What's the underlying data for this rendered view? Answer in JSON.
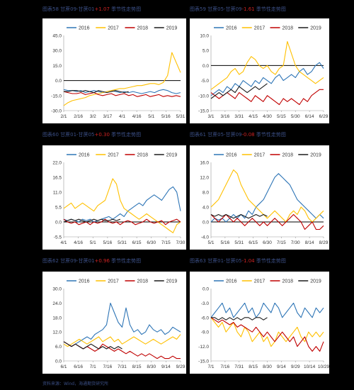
{
  "page": {
    "footer": "资料来源：Wind，海通期货研究所"
  },
  "chart_data": [
    {
      "type": "line",
      "caption": {
        "prefix": "图表58 甘蔗09-甘蔗01",
        "highlight": "+1.07",
        "suffix": " 季节性走势图"
      },
      "x_ticks": [
        "2/1",
        "2/16",
        "3/2",
        "3/17",
        "4/1",
        "4/16",
        "5/1",
        "5/16",
        "5/31"
      ],
      "ylim": [
        -30,
        45
      ],
      "y_ticks": [
        "45.0",
        "30.0",
        "15.0",
        "0.0",
        "-15.0",
        "-30.0"
      ],
      "y_tick_values": [
        45,
        30,
        15,
        0,
        -15,
        -30
      ],
      "legend": [
        "2016",
        "2017",
        "2018",
        "2019"
      ],
      "legend_position": "top",
      "series": [
        {
          "name": "2016",
          "color": "#2e75b6",
          "values": [
            -9,
            -10,
            -10,
            -11,
            -10,
            -12,
            -11,
            -10,
            -11,
            -12,
            -11,
            -10,
            -11,
            -12,
            -11,
            -12,
            -11,
            -12,
            -13,
            -12,
            -11,
            -12,
            -10,
            -9,
            -10,
            -12,
            -13,
            -12
          ]
        },
        {
          "name": "2017",
          "color": "#ffc000",
          "values": [
            -25,
            -22,
            -20,
            -19,
            -18,
            -17,
            -15,
            -14,
            -13,
            -12,
            -11,
            -10,
            -9,
            -8,
            -8,
            -7,
            -6,
            -5,
            -5,
            -4,
            -3,
            -3,
            -4,
            -2,
            5,
            28,
            18,
            8
          ]
        },
        {
          "name": "2018",
          "color": "#c00000",
          "values": [
            -11,
            -12,
            -13,
            -13,
            -12,
            -14,
            -13,
            -12,
            -14,
            -15,
            -14,
            -13,
            -15,
            -14,
            -13,
            -15,
            -14,
            -16,
            -15,
            -14,
            -16,
            -15,
            -14,
            -16,
            -15,
            -16,
            -15,
            -16
          ]
        },
        {
          "name": "2019",
          "color": "#1a1a1a",
          "values": [
            -11,
            -11,
            -10,
            -10,
            -11,
            -10,
            -11,
            -12,
            -10,
            -11,
            -12,
            -11,
            -10,
            -11,
            -12,
            -11
          ]
        }
      ]
    },
    {
      "type": "line",
      "caption": {
        "prefix": "图表59 甘蔗05-甘蔗09",
        "highlight": "-1.61",
        "suffix": " 季节性走势图"
      },
      "x_ticks": [
        "3/1",
        "3/16",
        "3/31",
        "4/15",
        "4/30",
        "5/15",
        "5/30",
        "6/14",
        "6/29"
      ],
      "ylim": [
        -15,
        10
      ],
      "y_ticks": [
        "10.0",
        "5.0",
        "0.0",
        "-5.0",
        "-10.0",
        "-15.0"
      ],
      "y_tick_values": [
        10,
        5,
        0,
        -5,
        -10,
        -15
      ],
      "legend": [
        "2016",
        "2017",
        "2018",
        "2019"
      ],
      "legend_position": "top",
      "series": [
        {
          "name": "2016",
          "color": "#2e75b6",
          "values": [
            -10,
            -9,
            -8,
            -9,
            -7,
            -8,
            -6,
            -7,
            -5,
            -6,
            -7,
            -5,
            -6,
            -4,
            -5,
            -6,
            -4,
            -3,
            -5,
            -4,
            -3,
            -4,
            -2,
            -1,
            -3,
            -2,
            0,
            1,
            -1
          ]
        },
        {
          "name": "2017",
          "color": "#ffc000",
          "values": [
            -8,
            -7,
            -6,
            -5,
            -4,
            -2,
            -1,
            -3,
            -2,
            1,
            3,
            2,
            0,
            -1,
            0,
            -2,
            -3,
            -1,
            0,
            8,
            4,
            0,
            -2,
            -3,
            -4,
            -5,
            -6,
            -5,
            -4
          ]
        },
        {
          "name": "2018",
          "color": "#c00000",
          "values": [
            -9,
            -10,
            -11,
            -10,
            -9,
            -10,
            -11,
            -9,
            -10,
            -11,
            -12,
            -10,
            -11,
            -12,
            -10,
            -11,
            -12,
            -13,
            -11,
            -12,
            -11,
            -12,
            -13,
            -11,
            -12,
            -10,
            -9,
            -8,
            -8
          ]
        },
        {
          "name": "2019",
          "color": "#1a1a1a",
          "values": [
            -11,
            -10,
            -9,
            -10,
            -9,
            -8,
            -9,
            -7,
            -8,
            -9,
            -8,
            -7,
            -8,
            -7,
            -6
          ]
        }
      ]
    },
    {
      "type": "line",
      "caption": {
        "prefix": "图表60 甘蔗01-甘蔗05",
        "highlight": "+0.30",
        "suffix": " 季节性走势图"
      },
      "x_ticks": [
        "4/1",
        "4/16",
        "5/1",
        "5/16",
        "5/31",
        "6/15",
        "6/30",
        "7/15",
        "7/30"
      ],
      "ylim": [
        -5.5,
        22
      ],
      "y_ticks": [
        "22.0",
        "16.5",
        "11.0",
        "5.5",
        "0.0",
        "-5.5"
      ],
      "y_tick_values": [
        22,
        16.5,
        11,
        5.5,
        0,
        -5.5
      ],
      "legend": [
        "2016",
        "2017",
        "2018",
        "2019"
      ],
      "legend_position": "top",
      "series": [
        {
          "name": "2016",
          "color": "#2e75b6",
          "values": [
            1,
            0.5,
            1,
            0.5,
            0,
            1,
            0.5,
            1,
            0,
            0.5,
            1,
            1.5,
            2,
            1,
            2,
            3,
            2,
            4,
            5,
            6,
            7,
            6,
            8,
            9,
            10,
            9,
            8,
            10,
            12,
            13,
            11,
            4
          ]
        },
        {
          "name": "2017",
          "color": "#ffc000",
          "values": [
            5,
            6,
            7,
            5,
            6,
            7,
            6,
            5,
            4,
            6,
            7,
            8,
            12,
            16,
            14,
            8,
            5,
            4,
            3,
            2,
            1,
            2,
            3,
            2,
            1,
            0,
            -1,
            -2,
            -3,
            -4,
            -1,
            0
          ]
        },
        {
          "name": "2018",
          "color": "#c00000",
          "values": [
            1,
            0,
            -0.5,
            0,
            -1,
            -0.5,
            0,
            -1,
            0,
            -0.5,
            0,
            1,
            0,
            -0.5,
            0,
            -1,
            0,
            0.5,
            0,
            -1,
            -0.5,
            0,
            1,
            0,
            -0.5,
            0,
            0.5,
            -1,
            0,
            0.5,
            1,
            0
          ]
        },
        {
          "name": "2019",
          "color": "#1a1a1a",
          "values": [
            0,
            0.5,
            1,
            0.5,
            1,
            0.5,
            0,
            0.5,
            1,
            0.5,
            1,
            0.5,
            0.5,
            1,
            0.5,
            1
          ]
        }
      ]
    },
    {
      "type": "line",
      "caption": {
        "prefix": "图表61 甘蔗05-甘蔗09",
        "highlight": "-0.08",
        "suffix": " 季节性走势图"
      },
      "x_ticks": [
        "5/1",
        "5/16",
        "5/31",
        "6/15",
        "6/30",
        "7/15",
        "7/30",
        "8/14",
        "8/29"
      ],
      "ylim": [
        -4,
        16
      ],
      "y_ticks": [
        "16.0",
        "12.0",
        "8.0",
        "4.0",
        "0.0",
        "-4.0"
      ],
      "y_tick_values": [
        16,
        12,
        8,
        4,
        0,
        -4
      ],
      "legend": [
        "2016",
        "2017",
        "2018",
        "2019"
      ],
      "legend_position": "top",
      "series": [
        {
          "name": "2016",
          "color": "#2e75b6",
          "values": [
            0,
            1,
            0.5,
            1,
            0,
            1,
            2,
            1,
            2,
            1,
            3,
            2,
            4,
            5,
            6,
            8,
            10,
            12,
            13,
            12,
            11,
            10,
            8,
            6,
            5,
            4,
            3,
            2,
            1,
            2,
            1
          ]
        },
        {
          "name": "2017",
          "color": "#ffc000",
          "values": [
            4,
            5,
            6,
            8,
            10,
            12,
            14,
            13,
            10,
            8,
            6,
            5,
            4,
            3,
            2,
            1,
            2,
            3,
            2,
            1,
            0,
            2,
            3,
            2,
            4,
            3,
            1,
            0,
            1,
            2,
            3
          ]
        },
        {
          "name": "2018",
          "color": "#c00000",
          "values": [
            2,
            1,
            0,
            1,
            2,
            1,
            0,
            1,
            0,
            -1,
            0,
            1,
            0,
            -1,
            0,
            -1,
            0,
            1,
            0,
            -1,
            0,
            1,
            2,
            1,
            0,
            -2,
            -1,
            0,
            -2,
            -2,
            -1
          ]
        },
        {
          "name": "2019",
          "color": "#1a1a1a",
          "values": [
            2,
            1.5,
            2,
            1.5,
            2,
            1.5,
            1,
            1.5,
            2,
            1.5,
            1,
            1.5,
            2,
            1.5,
            2,
            1.5
          ]
        }
      ]
    },
    {
      "type": "line",
      "caption": {
        "prefix": "图表62 甘蔗09-甘蔗01",
        "highlight": "+0.96",
        "suffix": " 季节性走势图"
      },
      "x_ticks": [
        "6/1",
        "6/16",
        "7/1",
        "7/16",
        "7/31",
        "8/15",
        "8/30",
        "9/14",
        "9/29"
      ],
      "ylim": [
        0,
        30
      ],
      "y_ticks": [
        "30.0",
        "24.0",
        "18.0",
        "12.0",
        "6.0",
        "0.0"
      ],
      "y_tick_values": [
        30,
        24,
        18,
        12,
        6,
        0
      ],
      "legend": [
        "2016",
        "2017",
        "2018",
        "2019"
      ],
      "legend_position": "top",
      "series": [
        {
          "name": "2016",
          "color": "#2e75b6",
          "values": [
            8,
            7,
            6,
            7,
            8,
            9,
            10,
            9,
            11,
            12,
            13,
            15,
            24,
            20,
            16,
            14,
            22,
            15,
            12,
            13,
            11,
            12,
            15,
            13,
            12,
            13,
            11,
            12,
            14,
            13,
            12
          ]
        },
        {
          "name": "2017",
          "color": "#ffc000",
          "values": [
            7,
            6,
            7,
            8,
            9,
            8,
            7,
            8,
            9,
            10,
            8,
            9,
            10,
            8,
            9,
            7,
            8,
            9,
            10,
            9,
            8,
            7,
            8,
            9,
            8,
            7,
            8,
            9,
            10,
            9,
            11
          ]
        },
        {
          "name": "2018",
          "color": "#c00000",
          "values": [
            8,
            7,
            6,
            7,
            6,
            5,
            6,
            5,
            4,
            5,
            7,
            6,
            5,
            4,
            5,
            4,
            3,
            4,
            3,
            2,
            3,
            2,
            3,
            2,
            1,
            2,
            1,
            1,
            2,
            1,
            1
          ]
        },
        {
          "name": "2019",
          "color": "#1a1a1a",
          "values": [
            8,
            7,
            6,
            7,
            6,
            5,
            6,
            7,
            6,
            5,
            6,
            5,
            6,
            5,
            6,
            5
          ]
        }
      ]
    },
    {
      "type": "line",
      "caption": {
        "prefix": "图表63 甘蔗01-甘蔗05",
        "highlight": "-1.04",
        "suffix": " 季节性走势图"
      },
      "x_ticks": [
        "7/1",
        "7/16",
        "7/31",
        "8/15",
        "8/30",
        "9/14",
        "9/29",
        "10/14",
        "10/29"
      ],
      "ylim": [
        -15,
        0
      ],
      "y_ticks": [
        "0.0",
        "-3.0",
        "-6.0",
        "-9.0",
        "-12.0",
        "-15.0"
      ],
      "y_tick_values": [
        0,
        -3,
        -6,
        -9,
        -12,
        -15
      ],
      "legend": [
        "2016",
        "2017",
        "2018",
        "2019"
      ],
      "legend_position": "top",
      "series": [
        {
          "name": "2016",
          "color": "#2e75b6",
          "values": [
            -6,
            -5,
            -4,
            -3,
            -5,
            -4,
            -6,
            -5,
            -4,
            -3,
            -5,
            -4,
            -6,
            -5,
            -3,
            -4,
            -5,
            -3,
            -4,
            -6,
            -5,
            -4,
            -3,
            -5,
            -6,
            -4,
            -5,
            -6,
            -4,
            -5,
            -4
          ]
        },
        {
          "name": "2017",
          "color": "#ffc000",
          "values": [
            -6,
            -7,
            -8,
            -7,
            -9,
            -8,
            -7,
            -9,
            -10,
            -8,
            -9,
            -11,
            -10,
            -9,
            -11,
            -10,
            -12,
            -11,
            -9,
            -10,
            -11,
            -10,
            -9,
            -8,
            -10,
            -11,
            -9,
            -10,
            -9,
            -10,
            -9
          ]
        },
        {
          "name": "2018",
          "color": "#c00000",
          "values": [
            -6,
            -6.5,
            -7,
            -6.5,
            -7,
            -7.5,
            -7,
            -8,
            -7.5,
            -8,
            -8.5,
            -9,
            -8,
            -9,
            -10,
            -9,
            -10,
            -11,
            -10,
            -9,
            -10,
            -11,
            -10,
            -12,
            -11,
            -10,
            -12,
            -13,
            -12,
            -13,
            -11
          ]
        },
        {
          "name": "2019",
          "color": "#1a1a1a",
          "values": [
            -6,
            -6,
            -6.5,
            -6,
            -6.5,
            -6,
            -6.5,
            -6,
            -6.5,
            -6,
            -6,
            -6.5,
            -6,
            -6,
            -6.5,
            -6
          ]
        }
      ]
    }
  ]
}
